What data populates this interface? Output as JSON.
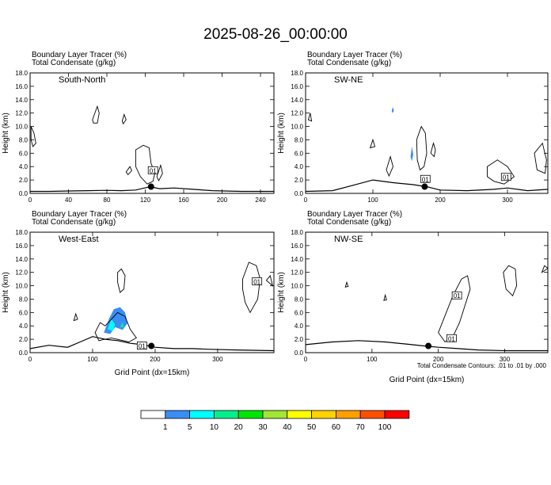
{
  "title": "2025-08-26_00:00:00",
  "variables": [
    "Boundary Layer Tracer   (%)",
    "Total Condensate   (g/kg)"
  ],
  "contour_note": "Total Condensate Contours: .01 to .01 by .000",
  "colorbar": {
    "colors": [
      "#ffffff",
      "#3a8df5",
      "#00ffff",
      "#00f08c",
      "#00e600",
      "#a0e632",
      "#ffff00",
      "#ffd200",
      "#ffa000",
      "#ff5000",
      "#ff0000"
    ],
    "labels": [
      "1",
      "5",
      "10",
      "20",
      "30",
      "40",
      "50",
      "60",
      "70",
      "100"
    ]
  },
  "chart_data": [
    {
      "type": "contour",
      "panel_label": "South-North",
      "header": [
        "Boundary Layer Tracer   (%)",
        "Total Condensate   (g/kg)"
      ],
      "ylabel": "Height (km)",
      "xlabel": "",
      "ylim": [
        0,
        18
      ],
      "xlim": [
        0,
        254
      ],
      "x_ticks": [
        "0",
        "40",
        "80",
        "120",
        "160",
        "200",
        "240"
      ],
      "x_tick_values": [
        0,
        40,
        80,
        120,
        160,
        200,
        240
      ],
      "y_ticks": [
        "0.0",
        "2.0",
        "4.0",
        "6.0",
        "8.0",
        "10.0",
        "12.0",
        "14.0",
        "16.0",
        "18.0"
      ],
      "contour_labels": [
        {
          "text": "01",
          "x": 128,
          "y": 3.4
        }
      ],
      "marker": {
        "x": 126,
        "y": 1.0
      },
      "terrain": [
        [
          0,
          0.3
        ],
        [
          20,
          0.3
        ],
        [
          40,
          0.35
        ],
        [
          60,
          0.4
        ],
        [
          80,
          0.45
        ],
        [
          95,
          0.4
        ],
        [
          110,
          0.5
        ],
        [
          125,
          1.0
        ],
        [
          135,
          0.7
        ],
        [
          150,
          0.8
        ],
        [
          170,
          0.6
        ],
        [
          190,
          0.4
        ],
        [
          220,
          0.3
        ],
        [
          254,
          0.3
        ]
      ],
      "condensate_contours": [
        [
          [
            1,
            10
          ],
          [
            4,
            9
          ],
          [
            6,
            7.5
          ],
          [
            3,
            7
          ],
          [
            1,
            8
          ]
        ],
        [
          [
            65,
            11
          ],
          [
            70,
            13
          ],
          [
            72,
            12
          ],
          [
            70,
            10.5
          ],
          [
            66,
            10.5
          ]
        ],
        [
          [
            96,
            10.8
          ],
          [
            98,
            11.8
          ],
          [
            100,
            11
          ],
          [
            97,
            10.4
          ]
        ],
        [
          [
            110,
            6.5
          ],
          [
            118,
            7.2
          ],
          [
            124,
            6.8
          ],
          [
            126,
            4.5
          ],
          [
            130,
            3
          ],
          [
            128,
            1.8
          ],
          [
            122,
            1.4
          ],
          [
            115,
            2.5
          ],
          [
            110,
            4
          ]
        ],
        [
          [
            100,
            3.2
          ],
          [
            104,
            4
          ],
          [
            106,
            3.4
          ],
          [
            102,
            2.8
          ]
        ],
        [
          [
            132,
            2.5
          ],
          [
            136,
            4.2
          ],
          [
            138,
            3
          ],
          [
            134,
            1.9
          ]
        ]
      ],
      "tracer_fill": []
    },
    {
      "type": "contour",
      "panel_label": "SW-NE",
      "header": [
        "Boundary Layer Tracer   (%)",
        "Total Condensate   (g/kg)"
      ],
      "ylabel": "Height (km)",
      "xlabel": "",
      "ylim": [
        0,
        18
      ],
      "xlim": [
        0,
        360
      ],
      "x_ticks": [
        "0",
        "100",
        "200",
        "300"
      ],
      "x_tick_values": [
        0,
        100,
        200,
        300
      ],
      "y_ticks": [
        "0.0",
        "2.0",
        "4.0",
        "6.0",
        "8.0",
        "10.0",
        "12.0",
        "14.0",
        "16.0",
        "18.0"
      ],
      "contour_labels": [
        {
          "text": "01",
          "x": 178,
          "y": 2.1
        },
        {
          "text": "01",
          "x": 298,
          "y": 2.4
        }
      ],
      "marker": {
        "x": 177,
        "y": 1.0
      },
      "terrain": [
        [
          0,
          0.3
        ],
        [
          40,
          0.4
        ],
        [
          70,
          1.2
        ],
        [
          100,
          2.0
        ],
        [
          130,
          1.6
        ],
        [
          160,
          1.3
        ],
        [
          180,
          1.0
        ],
        [
          200,
          0.5
        ],
        [
          240,
          0.4
        ],
        [
          280,
          0.6
        ],
        [
          300,
          0.8
        ],
        [
          330,
          0.4
        ],
        [
          360,
          0.6
        ]
      ],
      "condensate_contours": [
        [
          [
            165,
            8
          ],
          [
            172,
            10
          ],
          [
            178,
            9
          ],
          [
            180,
            6
          ],
          [
            176,
            4
          ],
          [
            170,
            3.5
          ],
          [
            166,
            5
          ]
        ],
        [
          [
            186,
            6
          ],
          [
            190,
            7.5
          ],
          [
            193,
            6.5
          ],
          [
            191,
            5.5
          ]
        ],
        [
          [
            120,
            3.5
          ],
          [
            126,
            5.5
          ],
          [
            130,
            4
          ],
          [
            124,
            2.6
          ]
        ],
        [
          [
            270,
            4
          ],
          [
            285,
            5
          ],
          [
            300,
            4
          ],
          [
            310,
            2.5
          ],
          [
            295,
            1.4
          ],
          [
            280,
            1.8
          ],
          [
            270,
            2.5
          ]
        ],
        [
          [
            340,
            6
          ],
          [
            352,
            7.5
          ],
          [
            358,
            5
          ],
          [
            356,
            3
          ],
          [
            344,
            3.5
          ]
        ],
        [
          [
            96,
            6.8
          ],
          [
            100,
            8
          ],
          [
            103,
            7
          ]
        ],
        [
          [
            4,
            11
          ],
          [
            7,
            12
          ],
          [
            9,
            10.8
          ]
        ]
      ],
      "tracer_fill": [
        {
          "color": "#3a8df5",
          "points": [
            [
              128,
              12.4
            ],
            [
              130,
              12.9
            ],
            [
              131,
              12.3
            ],
            [
              129,
              12
            ]
          ]
        },
        {
          "color": "#3a8df5",
          "points": [
            [
              156,
              5.5
            ],
            [
              158,
              7
            ],
            [
              160,
              5.8
            ],
            [
              158,
              4.8
            ]
          ]
        }
      ]
    },
    {
      "type": "contour",
      "panel_label": "West-East",
      "header": [
        "Boundary Layer Tracer   (%)",
        "Total Condensate   (g/kg)"
      ],
      "ylabel": "Height (km)",
      "xlabel": "Grid Point (dx=15km)",
      "ylim": [
        0,
        18
      ],
      "xlim": [
        0,
        390
      ],
      "x_ticks": [
        "0",
        "100",
        "200",
        "300"
      ],
      "x_tick_values": [
        0,
        100,
        200,
        300
      ],
      "y_ticks": [
        "0.0",
        "2.0",
        "4.0",
        "6.0",
        "8.0",
        "10.0",
        "12.0",
        "14.0",
        "16.0",
        "18.0"
      ],
      "contour_labels": [
        {
          "text": "01",
          "x": 363,
          "y": 10.6
        },
        {
          "text": "01",
          "x": 179,
          "y": 1.0
        }
      ],
      "marker": {
        "x": 194,
        "y": 1.0
      },
      "terrain": [
        [
          0,
          0.6
        ],
        [
          30,
          1.1
        ],
        [
          60,
          0.8
        ],
        [
          80,
          1.6
        ],
        [
          100,
          2.4
        ],
        [
          120,
          2.0
        ],
        [
          140,
          1.8
        ],
        [
          160,
          1.4
        ],
        [
          180,
          1.2
        ],
        [
          200,
          0.8
        ],
        [
          230,
          0.6
        ],
        [
          260,
          0.6
        ],
        [
          290,
          0.5
        ],
        [
          330,
          0.4
        ],
        [
          390,
          0.3
        ]
      ],
      "condensate_contours": [
        [
          [
            140,
            12
          ],
          [
            146,
            12.5
          ],
          [
            152,
            11.5
          ],
          [
            150,
            9.5
          ],
          [
            144,
            9
          ],
          [
            140,
            10.5
          ]
        ],
        [
          [
            104,
            3
          ],
          [
            112,
            4.5
          ],
          [
            120,
            4
          ],
          [
            130,
            5
          ],
          [
            140,
            6
          ],
          [
            152,
            5.4
          ],
          [
            160,
            3.5
          ],
          [
            170,
            2.2
          ],
          [
            158,
            1.6
          ],
          [
            130,
            2.2
          ],
          [
            110,
            1.8
          ]
        ],
        [
          [
            340,
            11
          ],
          [
            350,
            13.5
          ],
          [
            362,
            13
          ],
          [
            368,
            11
          ],
          [
            364,
            8
          ],
          [
            352,
            6
          ],
          [
            344,
            7.5
          ],
          [
            340,
            9.5
          ]
        ],
        [
          [
            378,
            10.8
          ],
          [
            384,
            11.5
          ],
          [
            388,
            10
          ]
        ],
        [
          [
            70,
            4.8
          ],
          [
            73,
            5.8
          ],
          [
            76,
            5
          ]
        ]
      ],
      "tracer_fill": [
        {
          "color": "#3a8df5",
          "points": [
            [
              118,
              3
            ],
            [
              126,
              5
            ],
            [
              134,
              6.5
            ],
            [
              144,
              6.8
            ],
            [
              152,
              6
            ],
            [
              156,
              4.4
            ],
            [
              148,
              3.4
            ],
            [
              136,
              3.8
            ],
            [
              128,
              2.8
            ]
          ]
        },
        {
          "color": "#00ffff",
          "points": [
            [
              124,
              3.5
            ],
            [
              130,
              5
            ],
            [
              136,
              4.2
            ],
            [
              132,
              3.2
            ]
          ]
        },
        {
          "color": "#00f08c",
          "points": [
            [
              144,
              3.8
            ],
            [
              148,
              4.6
            ],
            [
              150,
              3.8
            ]
          ]
        }
      ]
    },
    {
      "type": "contour",
      "panel_label": "NW-SE",
      "header": [
        "Boundary Layer Tracer   (%)",
        "Total Condensate   (g/kg)"
      ],
      "ylabel": "Height (km)",
      "xlabel": "Grid Point (dx=15km)",
      "ylim": [
        0,
        18
      ],
      "xlim": [
        0,
        365
      ],
      "x_ticks": [
        "0",
        "100",
        "200",
        "300"
      ],
      "x_tick_values": [
        0,
        100,
        200,
        300
      ],
      "y_ticks": [
        "0.0",
        "2.0",
        "4.0",
        "6.0",
        "8.0",
        "10.0",
        "12.0",
        "14.0",
        "16.0",
        "18.0"
      ],
      "contour_labels": [
        {
          "text": "01",
          "x": 228,
          "y": 8.5
        },
        {
          "text": "01",
          "x": 220,
          "y": 2.1
        }
      ],
      "marker": {
        "x": 185,
        "y": 1.0
      },
      "terrain": [
        [
          0,
          1.2
        ],
        [
          40,
          1.6
        ],
        [
          80,
          1.8
        ],
        [
          120,
          1.6
        ],
        [
          150,
          1.3
        ],
        [
          180,
          1.0
        ],
        [
          200,
          0.8
        ],
        [
          230,
          0.6
        ],
        [
          260,
          0.4
        ],
        [
          300,
          0.3
        ],
        [
          365,
          0.3
        ]
      ],
      "condensate_contours": [
        [
          [
            200,
            3
          ],
          [
            212,
            6
          ],
          [
            222,
            8.5
          ],
          [
            235,
            11
          ],
          [
            244,
            11.5
          ],
          [
            248,
            9.5
          ],
          [
            240,
            7
          ],
          [
            232,
            4.5
          ],
          [
            222,
            2.4
          ],
          [
            210,
            1.6
          ]
        ],
        [
          [
            298,
            12
          ],
          [
            306,
            13
          ],
          [
            316,
            12.5
          ],
          [
            318,
            10
          ],
          [
            312,
            8.5
          ],
          [
            302,
            9.5
          ]
        ],
        [
          [
            356,
            12
          ],
          [
            360,
            13
          ],
          [
            365,
            12.6
          ]
        ],
        [
          [
            60,
            9.8
          ],
          [
            62,
            10.5
          ],
          [
            64,
            9.9
          ]
        ],
        [
          [
            118,
            7.8
          ],
          [
            120,
            8.6
          ],
          [
            122,
            7.9
          ]
        ]
      ],
      "tracer_fill": []
    }
  ]
}
